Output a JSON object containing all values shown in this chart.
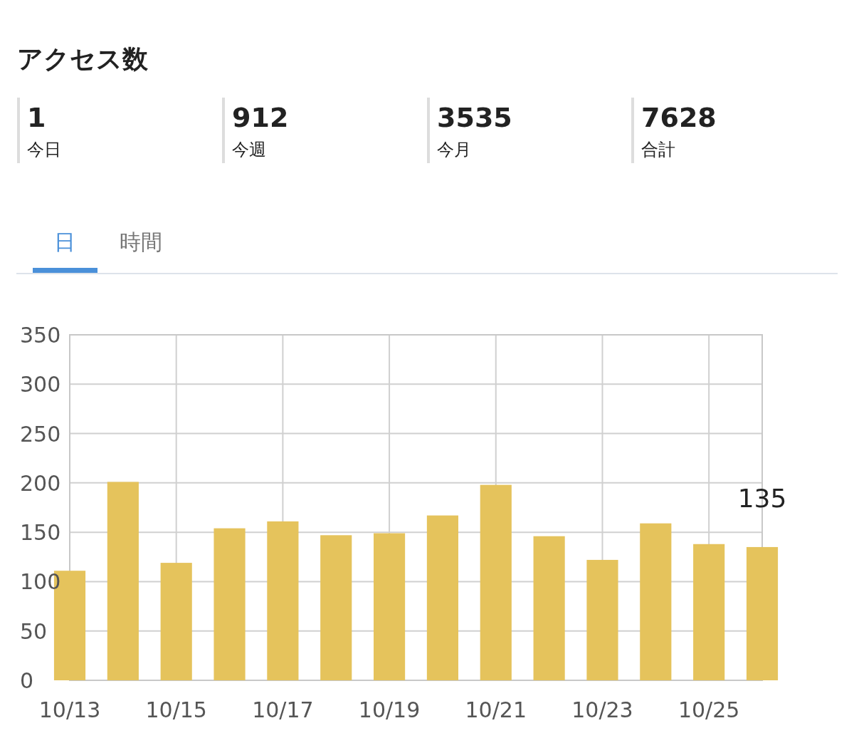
{
  "chart_data": {
    "type": "bar",
    "title": "アクセス数",
    "annotations": [
      "1",
      "今日",
      "912",
      "今週",
      "3535",
      "今月",
      "7628",
      "合計",
      "日",
      "時間"
    ],
    "categories": [
      "10/13",
      null,
      "10/15",
      null,
      "10/17",
      null,
      "10/19",
      null,
      "10/21",
      null,
      "10/23",
      null,
      "10/25",
      null
    ],
    "values": [
      111,
      201,
      119,
      154,
      161,
      147,
      149,
      167,
      198,
      146,
      122,
      159,
      138,
      135
    ],
    "value_labels": [
      null,
      null,
      null,
      null,
      null,
      null,
      null,
      null,
      null,
      null,
      null,
      null,
      null,
      "135"
    ],
    "color": "#e5c35c",
    "ylim": [
      0,
      350
    ],
    "yticks": [
      0,
      50,
      100,
      150,
      200,
      250,
      300,
      350
    ],
    "grid": true
  }
}
